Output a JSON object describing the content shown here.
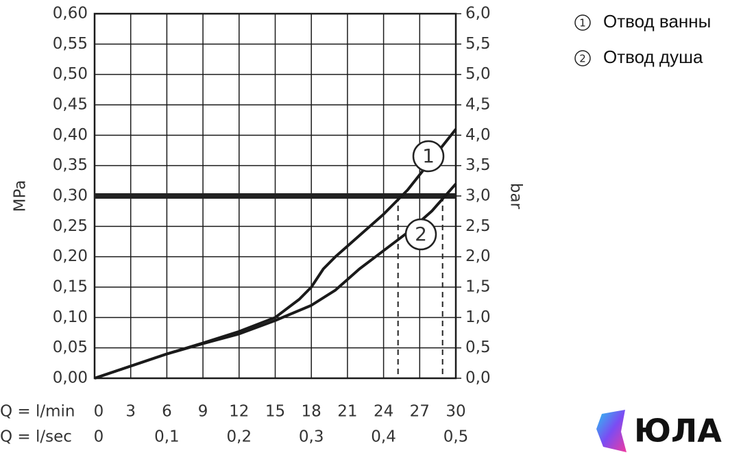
{
  "chart_data": {
    "type": "line",
    "xlabel": "Q = l/min",
    "x2label": "Q = l/sec",
    "ylabel": "MPa",
    "y2label": "bar",
    "xlim": [
      0,
      30
    ],
    "xticks": [
      0,
      3,
      6,
      9,
      12,
      15,
      18,
      21,
      24,
      27,
      30
    ],
    "x2lim": [
      0,
      0.5
    ],
    "x2ticks": [
      {
        "value": 0,
        "label": "0"
      },
      {
        "value": 0.1,
        "label": "0,1"
      },
      {
        "value": 0.2,
        "label": "0,2"
      },
      {
        "value": 0.3,
        "label": "0,3"
      },
      {
        "value": 0.4,
        "label": "0,4"
      },
      {
        "value": 0.5,
        "label": "0,5"
      }
    ],
    "ylim": [
      0,
      0.6
    ],
    "yticks": [
      {
        "value": 0,
        "label": "0,00"
      },
      {
        "value": 0.05,
        "label": "0,05"
      },
      {
        "value": 0.1,
        "label": "0,10"
      },
      {
        "value": 0.15,
        "label": "0,15"
      },
      {
        "value": 0.2,
        "label": "0,20"
      },
      {
        "value": 0.25,
        "label": "0,25"
      },
      {
        "value": 0.3,
        "label": "0,30"
      },
      {
        "value": 0.35,
        "label": "0,35"
      },
      {
        "value": 0.4,
        "label": "0,40"
      },
      {
        "value": 0.45,
        "label": "0,45"
      },
      {
        "value": 0.5,
        "label": "0,50"
      },
      {
        "value": 0.55,
        "label": "0,55"
      },
      {
        "value": 0.6,
        "label": "0,60"
      }
    ],
    "y2lim": [
      0,
      6
    ],
    "y2ticks": [
      {
        "value": 0,
        "label": "0,0"
      },
      {
        "value": 0.5,
        "label": "0,5"
      },
      {
        "value": 1,
        "label": "1,0"
      },
      {
        "value": 1.5,
        "label": "1,5"
      },
      {
        "value": 2,
        "label": "2,0"
      },
      {
        "value": 2.5,
        "label": "2,5"
      },
      {
        "value": 3,
        "label": "3,0"
      },
      {
        "value": 3.5,
        "label": "3,5"
      },
      {
        "value": 4,
        "label": "4,0"
      },
      {
        "value": 4.5,
        "label": "4,5"
      },
      {
        "value": 5,
        "label": "5,0"
      },
      {
        "value": 5.5,
        "label": "5,5"
      },
      {
        "value": 6,
        "label": "6,0"
      }
    ],
    "grid": true,
    "reference_line": 0.3,
    "dashed_lines": [
      25.2,
      28.9
    ],
    "legend": "upper right",
    "series": [
      {
        "name": "Отвод ванны",
        "label": "1",
        "color": "#1a1a1a",
        "x": [
          0,
          3,
          6,
          9,
          12,
          15,
          17,
          18,
          19,
          20,
          22,
          24,
          26,
          28,
          30
        ],
        "values": [
          0,
          0.02,
          0.04,
          0.058,
          0.077,
          0.1,
          0.13,
          0.15,
          0.18,
          0.2,
          0.235,
          0.27,
          0.31,
          0.36,
          0.41
        ]
      },
      {
        "name": "Отвод душа",
        "label": "2",
        "color": "#1a1a1a",
        "x": [
          0,
          3,
          6,
          9,
          12,
          15,
          18,
          20,
          22,
          24,
          26,
          28,
          30
        ],
        "values": [
          0,
          0.02,
          0.04,
          0.057,
          0.073,
          0.095,
          0.12,
          0.145,
          0.18,
          0.21,
          0.24,
          0.275,
          0.32
        ]
      }
    ],
    "watermark": "ЮЛА"
  }
}
